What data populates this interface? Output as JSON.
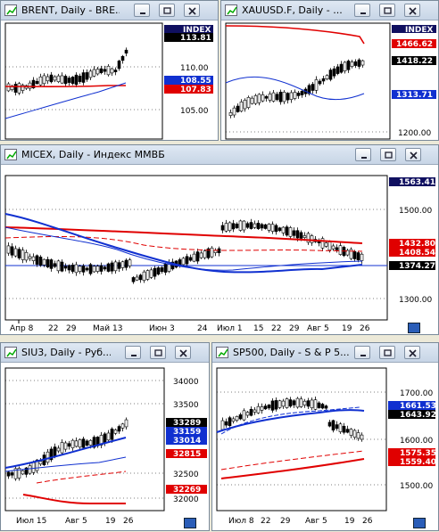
{
  "windows": {
    "brent": {
      "title": "BRENT, Daily - BRE..."
    },
    "gold": {
      "title": "XAUUSD.F, Daily - ..."
    },
    "micex": {
      "title": "MICEX, Daily - Индекс ММВБ"
    },
    "siu3": {
      "title": "SIU3, Daily - Руб..."
    },
    "sp500": {
      "title": "SP500, Daily - S & P 5..."
    }
  },
  "colors": {
    "price": "#000000",
    "ma_red": "#e00000",
    "ma_blue": "#1030d0",
    "tag_black": "#000000",
    "tag_red": "#e00000",
    "tag_blue": "#1030d0",
    "tag_navy": "#101060"
  },
  "chart_data": [
    {
      "name": "BRENT",
      "type": "candlestick",
      "y_ticks": [
        "110.00",
        "105.00"
      ],
      "tags": [
        {
          "text": "INDEX",
          "color": "navy"
        },
        {
          "text": "113.81",
          "color": "black"
        },
        {
          "text": "108.55",
          "color": "blue"
        },
        {
          "text": "107.83",
          "color": "red"
        }
      ]
    },
    {
      "name": "XAUUSD.F",
      "type": "candlestick",
      "y_ticks": [
        "1200.00"
      ],
      "tags": [
        {
          "text": "INDEX",
          "color": "navy"
        },
        {
          "text": "1466.62",
          "color": "red"
        },
        {
          "text": "1418.22",
          "color": "black"
        },
        {
          "text": "1313.71",
          "color": "blue"
        }
      ]
    },
    {
      "name": "MICEX",
      "type": "candlestick",
      "y_ticks": [
        "1500.00",
        "1300.00"
      ],
      "x_ticks": [
        "Апр 8",
        "22",
        "29",
        "Май 13",
        "Июн 3",
        "24",
        "Июл 1",
        "15",
        "22",
        "29",
        "Авг 5",
        "19",
        "26"
      ],
      "tags": [
        {
          "text": "1563.41",
          "color": "navy"
        },
        {
          "text": "1432.80",
          "color": "red"
        },
        {
          "text": "1408.54",
          "color": "red"
        },
        {
          "text": "1374.27",
          "color": "black"
        }
      ]
    },
    {
      "name": "SIU3",
      "type": "candlestick",
      "y_ticks": [
        "34000",
        "33500",
        "32500",
        "32000"
      ],
      "x_ticks": [
        "Июл 15",
        "Авг 5",
        "19",
        "26"
      ],
      "tags": [
        {
          "text": "33289",
          "color": "black"
        },
        {
          "text": "33159",
          "color": "blue"
        },
        {
          "text": "33014",
          "color": "blue"
        },
        {
          "text": "32815",
          "color": "red"
        },
        {
          "text": "32269",
          "color": "red"
        }
      ]
    },
    {
      "name": "SP500",
      "type": "candlestick",
      "y_ticks": [
        "1700.00",
        "1600.00",
        "1500.00"
      ],
      "x_ticks": [
        "Июл 8",
        "22",
        "29",
        "Авг 5",
        "19",
        "26"
      ],
      "tags": [
        {
          "text": "1661.53",
          "color": "blue"
        },
        {
          "text": "1643.92",
          "color": "black"
        },
        {
          "text": "1575.35",
          "color": "red"
        },
        {
          "text": "1559.40",
          "color": "red"
        }
      ]
    }
  ]
}
